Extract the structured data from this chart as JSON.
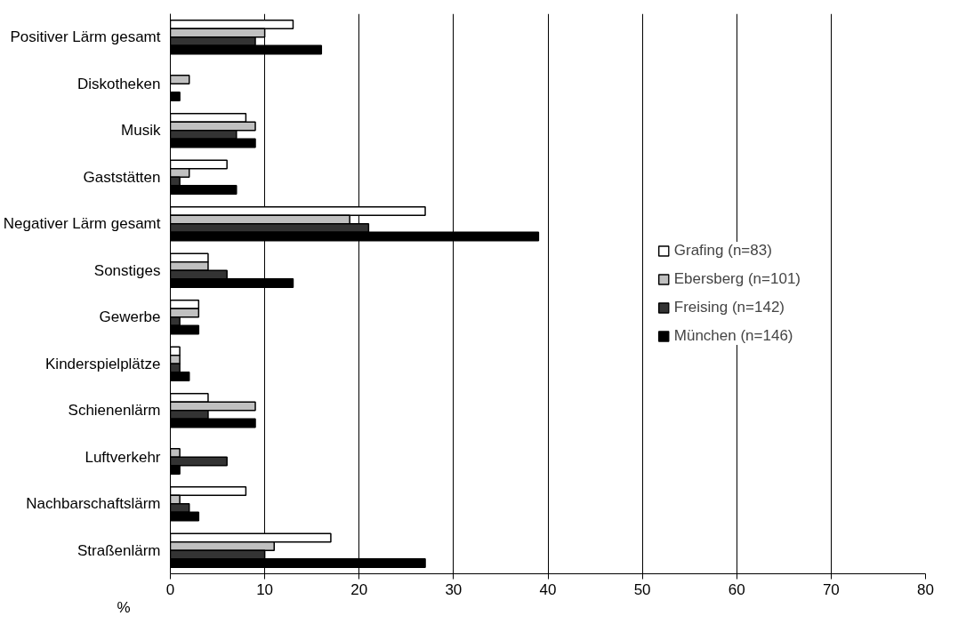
{
  "chart_data": {
    "type": "bar",
    "orientation": "horizontal",
    "xlabel": "%",
    "categories": [
      "Positiver Lärm gesamt",
      "Diskotheken",
      "Musik",
      "Gaststätten",
      "Negativer Lärm gesamt",
      "Sonstiges",
      "Gewerbe",
      "Kinderspielplätze",
      "Schienenlärm",
      "Luftverkehr",
      "Nachbarschaftslärm",
      "Straßenlärm"
    ],
    "series": [
      {
        "name": "Grafing (n=83)",
        "color": "#ffffff",
        "values": [
          13,
          null,
          8,
          6,
          27,
          4,
          3,
          1,
          4,
          null,
          8,
          17
        ]
      },
      {
        "name": "Ebersberg (n=101)",
        "color": "#c0c0c0",
        "values": [
          10,
          2,
          9,
          2,
          19,
          4,
          3,
          1,
          9,
          1,
          1,
          11
        ]
      },
      {
        "name": "Freising (n=142)",
        "color": "#333333",
        "values": [
          9,
          null,
          7,
          1,
          21,
          6,
          1,
          1,
          4,
          6,
          2,
          10
        ]
      },
      {
        "name": "München (n=146)",
        "color": "#000000",
        "values": [
          16,
          1,
          9,
          7,
          39,
          13,
          3,
          2,
          9,
          1,
          3,
          27
        ]
      }
    ],
    "xlim": [
      0,
      80
    ],
    "xticks": [
      0,
      10,
      20,
      30,
      40,
      50,
      60,
      70,
      80
    ],
    "grid": "x",
    "legend": "right"
  }
}
